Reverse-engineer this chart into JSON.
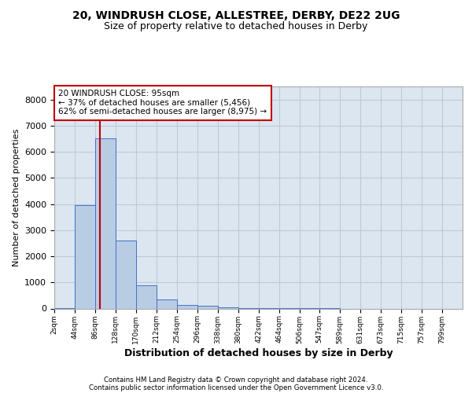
{
  "title1": "20, WINDRUSH CLOSE, ALLESTREE, DERBY, DE22 2UG",
  "title2": "Size of property relative to detached houses in Derby",
  "xlabel": "Distribution of detached houses by size in Derby",
  "ylabel": "Number of detached properties",
  "footer1": "Contains HM Land Registry data © Crown copyright and database right 2024.",
  "footer2": "Contains public sector information licensed under the Open Government Licence v3.0.",
  "annotation_line1": "20 WINDRUSH CLOSE: 95sqm",
  "annotation_line2": "← 37% of detached houses are smaller (5,456)",
  "annotation_line3": "62% of semi-detached houses are larger (8,975) →",
  "bar_edges": [
    2,
    44,
    86,
    128,
    170,
    212,
    254,
    296,
    338,
    380,
    422,
    464,
    506,
    547,
    589,
    631,
    673,
    715,
    757,
    799,
    841
  ],
  "bar_heights": [
    10,
    3950,
    6500,
    2600,
    900,
    350,
    130,
    100,
    50,
    15,
    5,
    3,
    2,
    1,
    0,
    0,
    0,
    0,
    0,
    0
  ],
  "bar_color": "#b8cce4",
  "bar_edge_color": "#4472c4",
  "grid_color": "#c0c8d8",
  "background_color": "#dce6f1",
  "property_line_x": 95,
  "property_line_color": "#c00000",
  "annotation_box_color": "#c00000",
  "ylim": [
    0,
    8500
  ],
  "yticks": [
    0,
    1000,
    2000,
    3000,
    4000,
    5000,
    6000,
    7000,
    8000
  ]
}
